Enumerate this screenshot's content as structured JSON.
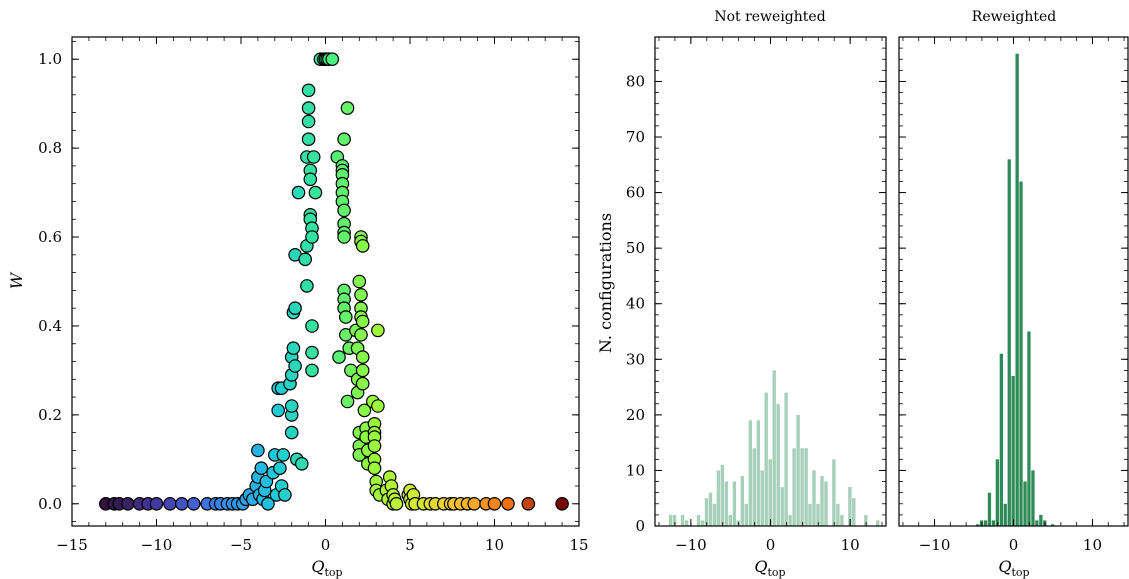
{
  "chart_data": [
    {
      "type": "scatter",
      "xlabel": "Q",
      "xlabel_sub": "top",
      "ylabel": "W",
      "xlim": [
        -15,
        15
      ],
      "ylim": [
        -0.05,
        1.05
      ],
      "xticks": [
        -15,
        -10,
        -5,
        0,
        5,
        10,
        15
      ],
      "xtick_labels": [
        "−15",
        "−10",
        "−5",
        "0",
        "5",
        "10",
        "15"
      ],
      "yticks": [
        0.0,
        0.2,
        0.4,
        0.6,
        0.8,
        1.0
      ],
      "ytick_labels": [
        "0.0",
        "0.2",
        "0.4",
        "0.6",
        "0.8",
        "1.0"
      ],
      "colormap": "rainbow (purple → blue → cyan → green → yellow → orange → red) by Q",
      "points": [
        [
          -13,
          0
        ],
        [
          -12.5,
          0
        ],
        [
          -12.2,
          0
        ],
        [
          -11.7,
          0
        ],
        [
          -11,
          0
        ],
        [
          -10.5,
          0
        ],
        [
          -10,
          0
        ],
        [
          -9.2,
          0
        ],
        [
          -8.5,
          0
        ],
        [
          -7.8,
          0
        ],
        [
          -7,
          0
        ],
        [
          -6.5,
          0
        ],
        [
          -6.2,
          0
        ],
        [
          -5.8,
          0
        ],
        [
          -5.5,
          0
        ],
        [
          -5.2,
          0
        ],
        [
          -4.9,
          0
        ],
        [
          -4.7,
          0.01
        ],
        [
          -4.5,
          0.02
        ],
        [
          -4.3,
          0.01
        ],
        [
          -4.1,
          0.04
        ],
        [
          -4,
          0.06
        ],
        [
          -4,
          0.12
        ],
        [
          -3.9,
          0.02
        ],
        [
          -3.8,
          0.08
        ],
        [
          -3.7,
          0.01
        ],
        [
          -3.6,
          0.03
        ],
        [
          -3.5,
          0.05
        ],
        [
          -3.4,
          0
        ],
        [
          -3.1,
          0.07
        ],
        [
          -3,
          0.11
        ],
        [
          -2.9,
          0.02
        ],
        [
          -2.8,
          0.26
        ],
        [
          -2.8,
          0.21
        ],
        [
          -2.7,
          0.08
        ],
        [
          -2.6,
          0.26
        ],
        [
          -2.6,
          0.04
        ],
        [
          -2.5,
          0.11
        ],
        [
          -2.4,
          0.02
        ],
        [
          -2.1,
          0.27
        ],
        [
          -2,
          0.29
        ],
        [
          -2,
          0.33
        ],
        [
          -2,
          0.2
        ],
        [
          -2,
          0.22
        ],
        [
          -2,
          0.16
        ],
        [
          -1.9,
          0.35
        ],
        [
          -1.9,
          0.43
        ],
        [
          -1.8,
          0.31
        ],
        [
          -1.8,
          0.44
        ],
        [
          -1.8,
          0.56
        ],
        [
          -1.7,
          0.1
        ],
        [
          -1.6,
          0.7
        ],
        [
          -1.4,
          0.09
        ],
        [
          -1.2,
          0.55
        ],
        [
          -1.1,
          0.78
        ],
        [
          -1.1,
          0.58
        ],
        [
          -1.1,
          0.49
        ],
        [
          -1,
          0.93
        ],
        [
          -1,
          0.89
        ],
        [
          -1,
          0.86
        ],
        [
          -1,
          0.82
        ],
        [
          -0.9,
          0.75
        ],
        [
          -0.9,
          0.73
        ],
        [
          -0.9,
          0.65
        ],
        [
          -0.9,
          0.64
        ],
        [
          -0.8,
          0.62
        ],
        [
          -0.8,
          0.6
        ],
        [
          -0.8,
          0.34
        ],
        [
          -0.8,
          0.3
        ],
        [
          -0.8,
          0.4
        ],
        [
          -0.7,
          0.78
        ],
        [
          -0.6,
          0.7
        ],
        [
          -0.3,
          1
        ],
        [
          -0.1,
          1
        ],
        [
          0,
          1
        ],
        [
          0.1,
          1
        ],
        [
          0.2,
          1
        ],
        [
          0.4,
          1
        ],
        [
          0.7,
          0.78
        ],
        [
          0.8,
          0.33
        ],
        [
          1,
          0.76
        ],
        [
          1,
          0.75
        ],
        [
          1,
          0.74
        ],
        [
          1,
          0.72
        ],
        [
          1,
          0.7
        ],
        [
          1,
          0.68
        ],
        [
          1.1,
          0.66
        ],
        [
          1.1,
          0.63
        ],
        [
          1.1,
          0.61
        ],
        [
          1.1,
          0.6
        ],
        [
          1.1,
          0.48
        ],
        [
          1.1,
          0.46
        ],
        [
          1.1,
          0.44
        ],
        [
          1.2,
          0.42
        ],
        [
          1.2,
          0.38
        ],
        [
          1.1,
          0.82
        ],
        [
          1.3,
          0.89
        ],
        [
          1.3,
          0.23
        ],
        [
          1.4,
          0.35
        ],
        [
          1.5,
          0.3
        ],
        [
          1.8,
          0.39
        ],
        [
          1.9,
          0.35
        ],
        [
          1.9,
          0.28
        ],
        [
          1.9,
          0.25
        ],
        [
          2,
          0.16
        ],
        [
          2,
          0.13
        ],
        [
          2,
          0.11
        ],
        [
          2,
          0.5
        ],
        [
          2.1,
          0.47
        ],
        [
          2.1,
          0.6
        ],
        [
          2.1,
          0.59
        ],
        [
          2.1,
          0.44
        ],
        [
          2.1,
          0.42
        ],
        [
          2.1,
          0.38
        ],
        [
          2.2,
          0.58
        ],
        [
          2.2,
          0.41
        ],
        [
          2.2,
          0.33
        ],
        [
          2.2,
          0.3
        ],
        [
          2.2,
          0.27
        ],
        [
          2.3,
          0.21
        ],
        [
          2.4,
          0.17
        ],
        [
          2.4,
          0.15
        ],
        [
          2.5,
          0.12
        ],
        [
          2.5,
          0.09
        ],
        [
          2.8,
          0.23
        ],
        [
          2.9,
          0.18
        ],
        [
          2.9,
          0.16
        ],
        [
          2.9,
          0.15
        ],
        [
          2.9,
          0.13
        ],
        [
          2.9,
          0.1
        ],
        [
          2.9,
          0.08
        ],
        [
          3,
          0.05
        ],
        [
          3,
          0.03
        ],
        [
          3.1,
          0.39
        ],
        [
          3.1,
          0.22
        ],
        [
          3.2,
          0.02
        ],
        [
          3.6,
          0.03
        ],
        [
          3.7,
          0.01
        ],
        [
          3.8,
          0.06
        ],
        [
          3.9,
          0.04
        ],
        [
          4,
          0.02
        ],
        [
          4,
          0
        ],
        [
          4.1,
          0.01
        ],
        [
          4.2,
          0
        ],
        [
          4.9,
          0.02
        ],
        [
          5,
          0.03
        ],
        [
          5,
          0.01
        ],
        [
          5.1,
          0
        ],
        [
          5.2,
          0.02
        ],
        [
          5.3,
          0
        ],
        [
          5.8,
          0
        ],
        [
          6.2,
          0
        ],
        [
          6.5,
          0
        ],
        [
          7,
          0
        ],
        [
          7.4,
          0
        ],
        [
          7.6,
          0
        ],
        [
          8,
          0
        ],
        [
          8.4,
          0
        ],
        [
          8.8,
          0
        ],
        [
          9.5,
          0
        ],
        [
          10,
          0
        ],
        [
          10.8,
          0
        ],
        [
          12,
          0
        ],
        [
          14,
          0
        ]
      ]
    },
    {
      "type": "bar",
      "title": "Not reweighted",
      "xlabel": "Q",
      "xlabel_sub": "top",
      "ylabel": "N. configurations",
      "xlim": [
        -14.5,
        14.5
      ],
      "ylim": [
        0,
        88
      ],
      "xticks": [
        -10,
        0,
        10
      ],
      "xtick_labels": [
        "−10",
        "0",
        "10"
      ],
      "yticks": [
        0,
        10,
        20,
        30,
        40,
        50,
        60,
        70,
        80
      ],
      "color": "#a8cfb8",
      "bins": [
        {
          "x": -12.5,
          "v": 2
        },
        {
          "x": -12,
          "v": 2
        },
        {
          "x": -11,
          "v": 2
        },
        {
          "x": -10.5,
          "v": 1
        },
        {
          "x": -9,
          "v": 2
        },
        {
          "x": -8.5,
          "v": 1
        },
        {
          "x": -8,
          "v": 5
        },
        {
          "x": -7.5,
          "v": 6
        },
        {
          "x": -7,
          "v": 4
        },
        {
          "x": -6.5,
          "v": 10
        },
        {
          "x": -6,
          "v": 11
        },
        {
          "x": -5.5,
          "v": 8
        },
        {
          "x": -5,
          "v": 2
        },
        {
          "x": -4.5,
          "v": 8
        },
        {
          "x": -4,
          "v": 1
        },
        {
          "x": -3.5,
          "v": 9
        },
        {
          "x": -3,
          "v": 4
        },
        {
          "x": -2.5,
          "v": 19
        },
        {
          "x": -2,
          "v": 14
        },
        {
          "x": -1.5,
          "v": 19
        },
        {
          "x": -1,
          "v": 10
        },
        {
          "x": -0.5,
          "v": 24
        },
        {
          "x": 0,
          "v": 12
        },
        {
          "x": 0.5,
          "v": 28
        },
        {
          "x": 1,
          "v": 22
        },
        {
          "x": 1.5,
          "v": 7
        },
        {
          "x": 2,
          "v": 24
        },
        {
          "x": 2.5,
          "v": 2
        },
        {
          "x": 3,
          "v": 14
        },
        {
          "x": 3.5,
          "v": 20
        },
        {
          "x": 4,
          "v": 14
        },
        {
          "x": 4.5,
          "v": 14
        },
        {
          "x": 5,
          "v": 4
        },
        {
          "x": 5.5,
          "v": 10
        },
        {
          "x": 6,
          "v": 4
        },
        {
          "x": 6.5,
          "v": 9
        },
        {
          "x": 7,
          "v": 8
        },
        {
          "x": 8,
          "v": 12
        },
        {
          "x": 8.5,
          "v": 4
        },
        {
          "x": 9,
          "v": 2
        },
        {
          "x": 10,
          "v": 7
        },
        {
          "x": 10.5,
          "v": 5
        },
        {
          "x": 12,
          "v": 2
        },
        {
          "x": 13.5,
          "v": 1
        }
      ]
    },
    {
      "type": "bar",
      "title": "Reweighted",
      "xlabel": "Q",
      "xlabel_sub": "top",
      "xlim": [
        -14.5,
        14.5
      ],
      "ylim": [
        0,
        88
      ],
      "xticks": [
        -10,
        0,
        10
      ],
      "xtick_labels": [
        "−10",
        "0",
        "10"
      ],
      "color": "#2e8b57",
      "bins": [
        {
          "x": -4.5,
          "v": 0.3
        },
        {
          "x": -4,
          "v": 1
        },
        {
          "x": -3.5,
          "v": 1
        },
        {
          "x": -3,
          "v": 6
        },
        {
          "x": -2.5,
          "v": 1
        },
        {
          "x": -2,
          "v": 12
        },
        {
          "x": -1.5,
          "v": 31
        },
        {
          "x": -1,
          "v": 4
        },
        {
          "x": -0.5,
          "v": 66
        },
        {
          "x": 0,
          "v": 27
        },
        {
          "x": 0.5,
          "v": 85
        },
        {
          "x": 1,
          "v": 62
        },
        {
          "x": 1.5,
          "v": 8
        },
        {
          "x": 2,
          "v": 35
        },
        {
          "x": 2.5,
          "v": 10
        },
        {
          "x": 3,
          "v": 1
        },
        {
          "x": 3.5,
          "v": 2
        },
        {
          "x": 4,
          "v": 1
        },
        {
          "x": 5,
          "v": 0.3
        }
      ]
    }
  ]
}
